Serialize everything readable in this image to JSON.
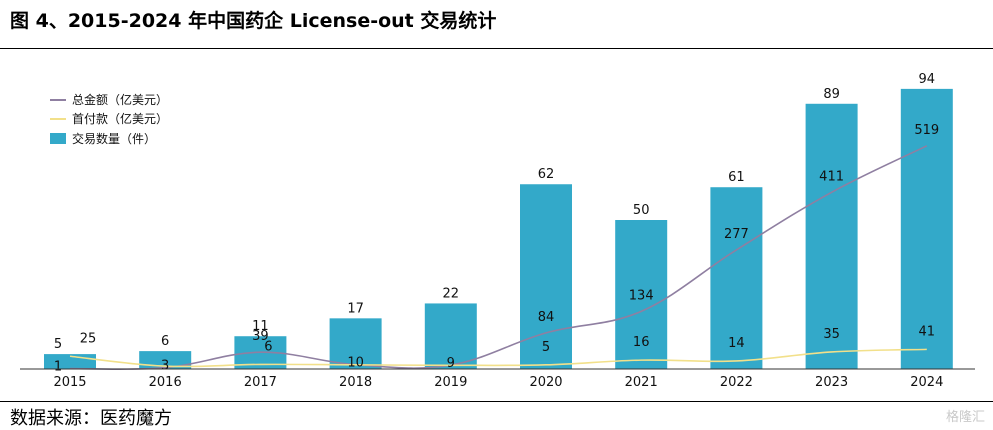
{
  "header": {
    "title": "图 4、2015-2024 年中国药企 License-out 交易统计"
  },
  "footer": {
    "source": "数据来源：医药魔方",
    "watermark": "格隆汇"
  },
  "colors": {
    "bar": "#33a9c9",
    "total_line": "#8f7fa1",
    "upfront_line": "#f2e08a",
    "axis": "#333333"
  },
  "chart_data": {
    "type": "bar",
    "title": "",
    "categories": [
      "2015",
      "2016",
      "2017",
      "2018",
      "2019",
      "2020",
      "2021",
      "2022",
      "2023",
      "2024"
    ],
    "legend_position": "top-left",
    "grid": false,
    "series": [
      {
        "name": "交易数量（件）",
        "type": "bar",
        "values": [
          5,
          6,
          11,
          17,
          22,
          62,
          50,
          61,
          89,
          94
        ]
      },
      {
        "name": "总金额（亿美元）",
        "type": "line",
        "values": [
          1,
          3,
          39,
          10,
          9,
          84,
          134,
          277,
          411,
          519
        ]
      },
      {
        "name": "首付款（亿美元）",
        "type": "line",
        "values": [
          25,
          null,
          6,
          null,
          null,
          5,
          16,
          14,
          35,
          41
        ]
      }
    ],
    "total_labels": [
      "1",
      "3",
      "39",
      "10",
      "9",
      "84",
      "134",
      "277",
      "411",
      "519"
    ],
    "upfront_labels": [
      "25",
      "",
      "6",
      "",
      "",
      "5",
      "16",
      "14",
      "35",
      "41"
    ]
  }
}
